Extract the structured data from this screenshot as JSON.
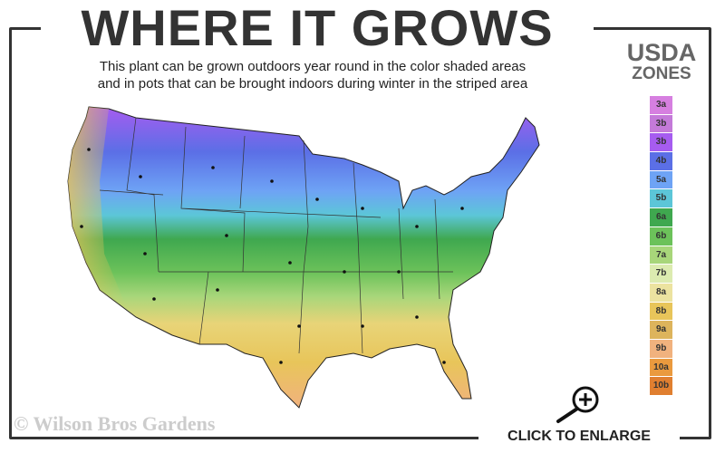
{
  "title": "WHERE IT GROWS",
  "subtitle_line1": "This plant can be grown outdoors year round in the color shaded areas",
  "subtitle_line2": "and in pots that can be brought indoors during winter in the striped area",
  "legend": {
    "heading1": "USDA",
    "heading2": "ZONES",
    "zones": [
      {
        "label": "3a",
        "color": "#d67fe0"
      },
      {
        "label": "3b",
        "color": "#c47ad9"
      },
      {
        "label": "3b",
        "color": "#a65cf0"
      },
      {
        "label": "4b",
        "color": "#5b6fe6"
      },
      {
        "label": "5a",
        "color": "#6ea3f5"
      },
      {
        "label": "5b",
        "color": "#5cc6d8"
      },
      {
        "label": "6a",
        "color": "#3fa84f"
      },
      {
        "label": "6b",
        "color": "#6cc25a"
      },
      {
        "label": "7a",
        "color": "#a8d67a"
      },
      {
        "label": "7b",
        "color": "#dcebb0"
      },
      {
        "label": "8a",
        "color": "#ece3a0"
      },
      {
        "label": "8b",
        "color": "#e8c55a"
      },
      {
        "label": "9a",
        "color": "#ddb45c"
      },
      {
        "label": "9b",
        "color": "#f1b27e"
      },
      {
        "label": "10a",
        "color": "#ea9a3e"
      },
      {
        "label": "10b",
        "color": "#e07f30"
      }
    ]
  },
  "copyright": "© Wilson Bros Gardens",
  "enlarge_label": "CLICK TO ENLARGE",
  "icons": {
    "enlarge": "magnifier-plus-icon"
  }
}
